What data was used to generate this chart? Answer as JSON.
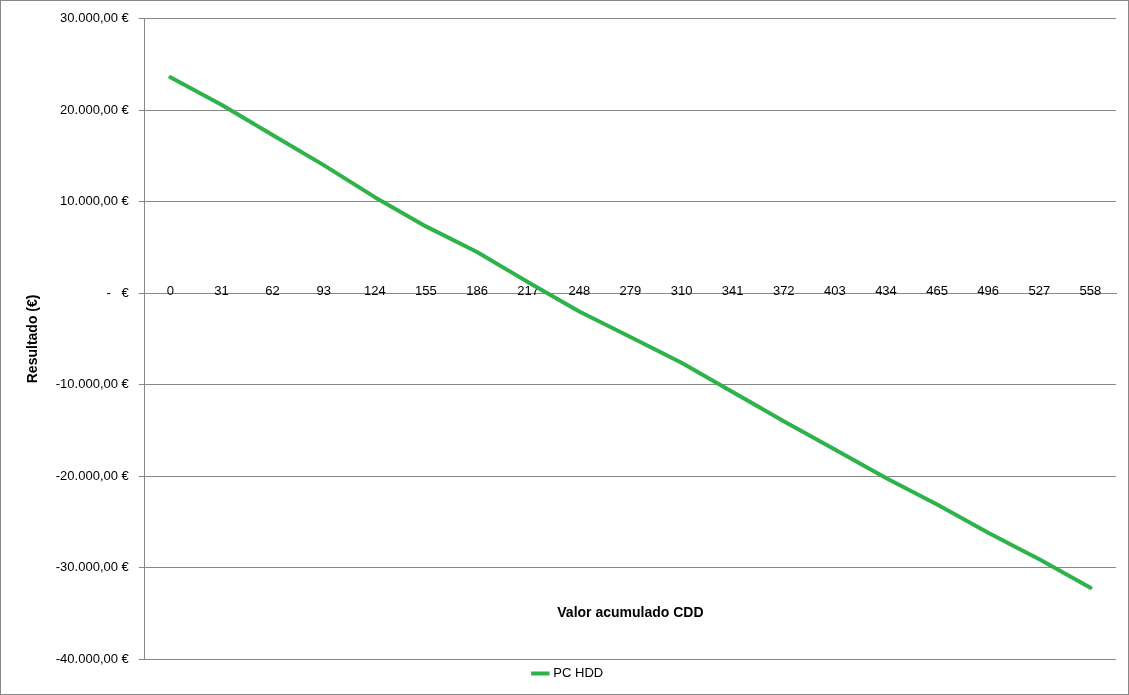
{
  "chart_data": {
    "type": "line",
    "xlabel": "Valor acumulado CDD",
    "ylabel": "Resultado (€)",
    "categories": [
      "0",
      "31",
      "62",
      "93",
      "124",
      "155",
      "186",
      "217",
      "248",
      "279",
      "310",
      "341",
      "372",
      "403",
      "434",
      "465",
      "496",
      "527",
      "558"
    ],
    "series": [
      {
        "name": "PC HDD",
        "color": "#2eb24a",
        "values": [
          23600,
          20600,
          17300,
          14000,
          10500,
          7300,
          4500,
          1200,
          -2000,
          -4800,
          -7600,
          -10800,
          -14000,
          -17100,
          -20200,
          -23100,
          -26200,
          -29100,
          -32200
        ]
      }
    ],
    "ylim": [
      -40000,
      30000
    ],
    "yticks": [
      {
        "value": -40000,
        "label": "-40.000,00 €"
      },
      {
        "value": -30000,
        "label": "-30.000,00 €"
      },
      {
        "value": -20000,
        "label": "-20.000,00 €"
      },
      {
        "value": -10000,
        "label": "-10.000,00 €"
      },
      {
        "value": 0,
        "label": "-   €"
      },
      {
        "value": 10000,
        "label": "10.000,00 €"
      },
      {
        "value": 20000,
        "label": "20.000,00 €"
      },
      {
        "value": 30000,
        "label": "30.000,00 €"
      }
    ],
    "grid": "y",
    "legend": "bottom"
  }
}
